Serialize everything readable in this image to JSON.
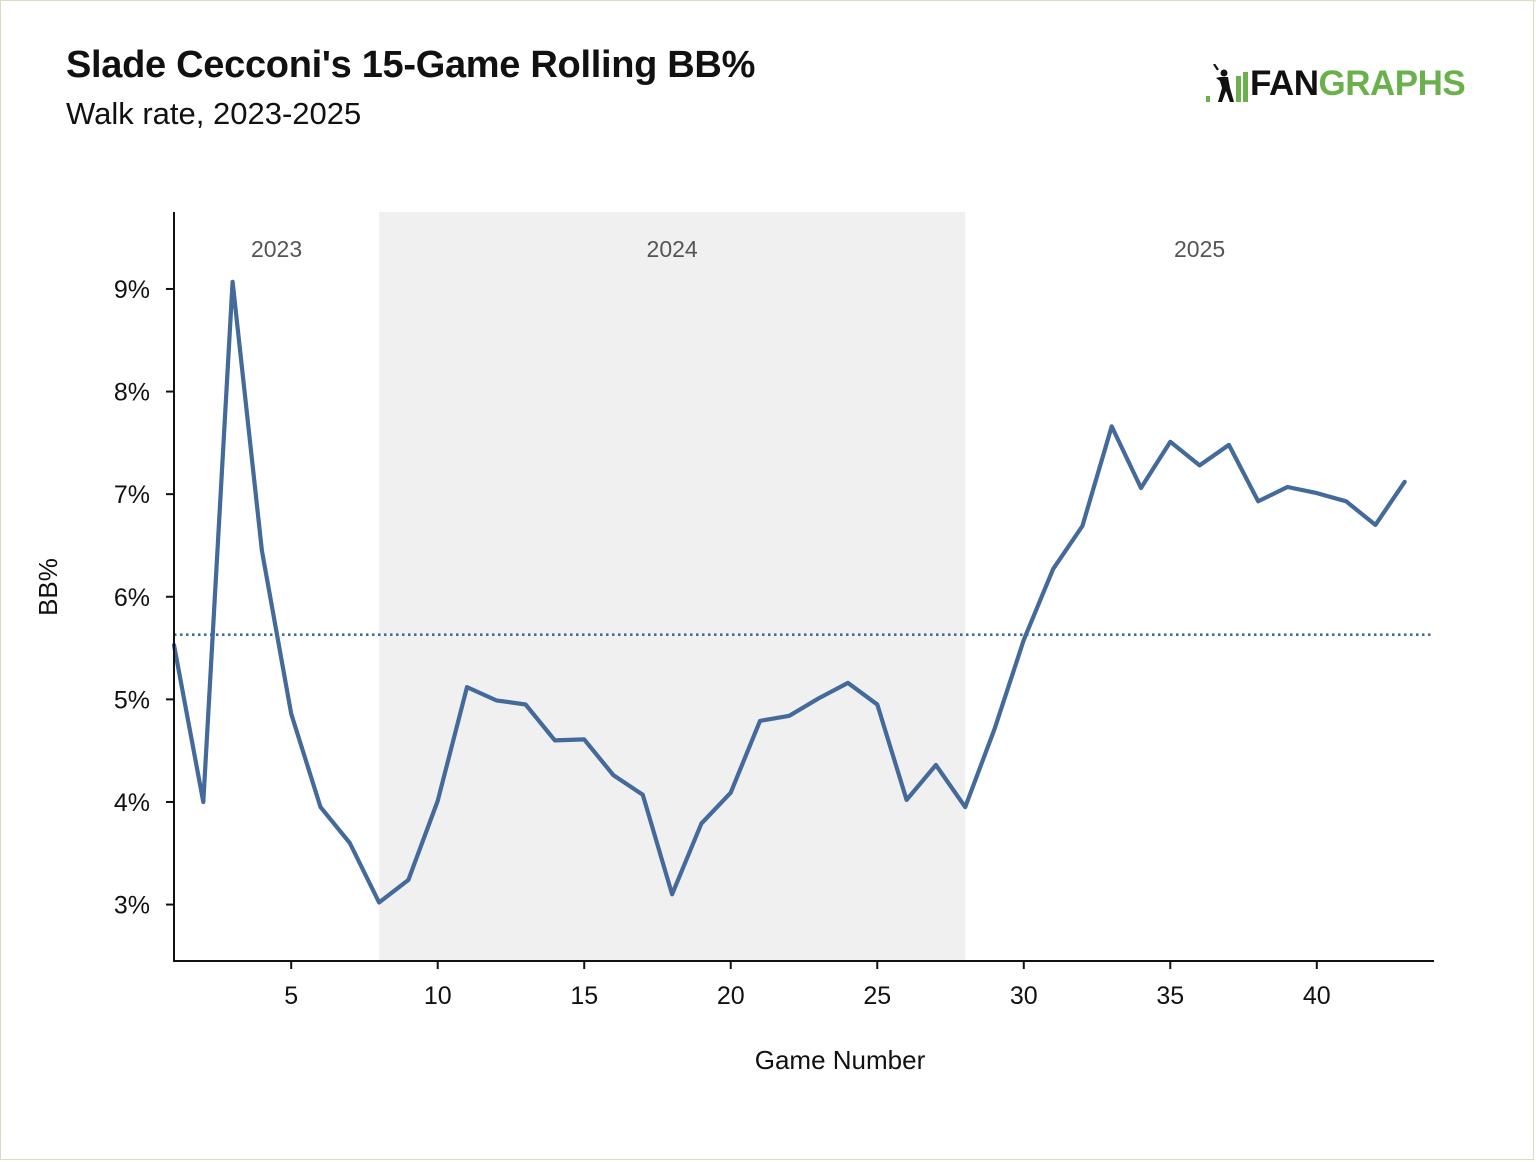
{
  "title": "Slade Cecconi's 15-Game Rolling BB%",
  "subtitle": "Walk rate, 2023-2025",
  "logo": {
    "text_dark": "FAN",
    "text_green": "GRAPHS",
    "icon": "fangraphs-batter-icon",
    "color_green": "#6ab04c"
  },
  "colors": {
    "line": "#44699b",
    "band": "#f0f0f0",
    "axis": "#111111",
    "season_label": "#555555"
  },
  "chart_data": {
    "type": "line",
    "xlabel": "Game Number",
    "ylabel": "BB%",
    "xlim": [
      1,
      44
    ],
    "ylim": [
      2.45,
      9.75
    ],
    "x_ticks": [
      5,
      10,
      15,
      20,
      25,
      30,
      35,
      40
    ],
    "x_tick_labels": [
      "5",
      "10",
      "15",
      "20",
      "25",
      "30",
      "35",
      "40"
    ],
    "y_ticks": [
      3,
      4,
      5,
      6,
      7,
      8,
      9
    ],
    "y_tick_labels": [
      "3%",
      "4%",
      "5%",
      "6%",
      "7%",
      "8%",
      "9%"
    ],
    "grid": false,
    "x": [
      1,
      2,
      3,
      4,
      5,
      6,
      7,
      8,
      9,
      10,
      11,
      12,
      13,
      14,
      15,
      16,
      17,
      18,
      19,
      20,
      21,
      22,
      23,
      24,
      25,
      26,
      27,
      28,
      29,
      30,
      31,
      32,
      33,
      34,
      35,
      36,
      37,
      38,
      39,
      40,
      41,
      42,
      43
    ],
    "series": [
      {
        "values": [
          5.53,
          4.0,
          9.07,
          6.45,
          4.86,
          3.95,
          3.6,
          3.02,
          3.24,
          4.01,
          5.12,
          4.99,
          4.95,
          4.6,
          4.61,
          4.26,
          4.07,
          3.1,
          3.79,
          4.09,
          4.79,
          4.84,
          5.01,
          5.16,
          4.95,
          4.02,
          4.36,
          3.95,
          4.71,
          5.58,
          6.27,
          6.69,
          7.66,
          7.06,
          7.51,
          7.28,
          7.48,
          6.93,
          7.07,
          7.01,
          6.93,
          6.7,
          7.12
        ]
      }
    ],
    "reference_line": {
      "y": 5.63,
      "style": "dotted"
    },
    "seasons": [
      {
        "label": "2023",
        "x_start": 1,
        "x_end": 8,
        "shaded": false
      },
      {
        "label": "2024",
        "x_start": 8,
        "x_end": 28,
        "shaded": true
      },
      {
        "label": "2025",
        "x_start": 28,
        "x_end": 44,
        "shaded": false
      }
    ]
  }
}
